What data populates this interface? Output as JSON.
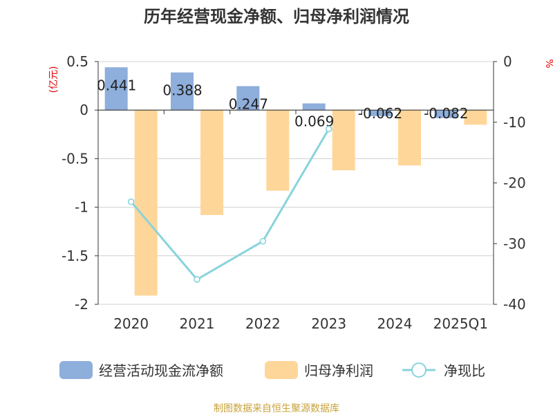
{
  "chart_data": {
    "type": "bar",
    "title": "历年经营现金净额、归母净利润情况",
    "ylabel_left": "(亿元)",
    "ylabel_right": "%",
    "categories": [
      "2020",
      "2021",
      "2022",
      "2023",
      "2024",
      "2025Q1"
    ],
    "ylim_left": [
      -2,
      0.5
    ],
    "yticks_left": [
      "0.5",
      "0",
      "-0.5",
      "-1",
      "-1.5",
      "-2"
    ],
    "ylim_right": [
      -40,
      0
    ],
    "yticks_right": [
      "0",
      "-10",
      "-20",
      "-30",
      "-40"
    ],
    "grid": true,
    "series": [
      {
        "name": "经营活动现金流净额",
        "type": "bar",
        "axis": "left",
        "color": "#8eaedb",
        "values": [
          0.441,
          0.388,
          0.247,
          0.069,
          -0.062,
          -0.082
        ],
        "labels": [
          "0.441",
          "0.388",
          "0.247",
          "0.069",
          "-0.062",
          "-0.082"
        ]
      },
      {
        "name": "归母净利润",
        "type": "bar",
        "axis": "left",
        "color": "#ffd699",
        "values": [
          -1.91,
          -1.08,
          -0.83,
          -0.62,
          -0.57,
          -0.15
        ]
      },
      {
        "name": "净现比",
        "type": "line",
        "axis": "right",
        "color": "#88d3dc",
        "values": [
          -23.1,
          -35.9,
          -29.6,
          -11.1,
          null,
          null
        ]
      }
    ],
    "legend_position": "bottom",
    "source": "制图数据来自恒生聚源数据库"
  }
}
